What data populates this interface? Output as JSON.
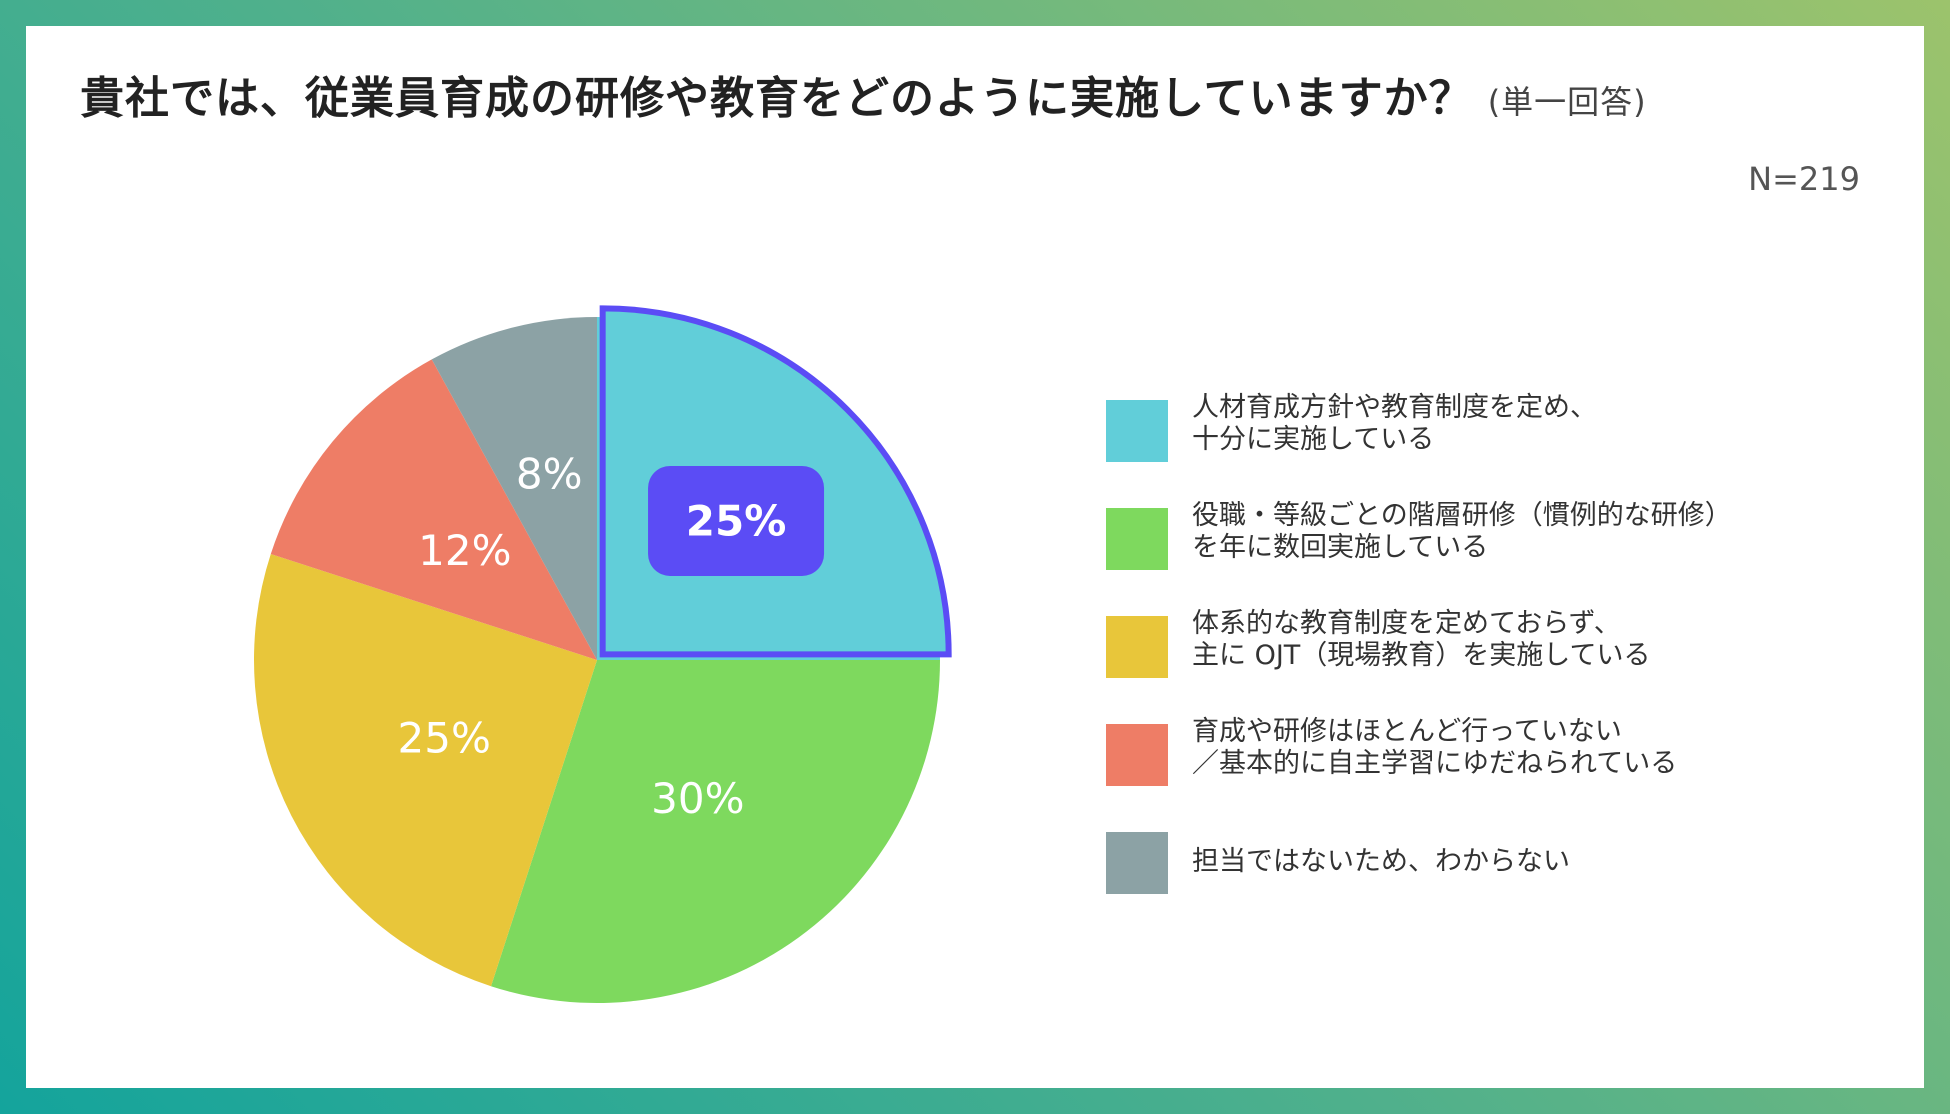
{
  "header": {
    "title": "貴社では、従業員育成の研修や教育をどのように実施していますか？",
    "title_note": "(単一回答)",
    "n_label": "N=219"
  },
  "chart_data": {
    "type": "pie",
    "title": "貴社では、従業員育成の研修や教育をどのように実施していますか？",
    "note": "(単一回答)",
    "n": "N=219",
    "legend_placement": "right",
    "highlighted_slice": 0,
    "highlight_color": "#5b4cf5",
    "slices": [
      {
        "label": "人材育成方針や教育制度を定め、\n十分に実施している",
        "value": 25,
        "value_label": "25%",
        "color": "#61ced9"
      },
      {
        "label": "役職・等級ごとの階層研修（慣例的な研修）\nを年に数回実施している",
        "value": 30,
        "value_label": "30%",
        "color": "#7ed95e"
      },
      {
        "label": "体系的な教育制度を定めておらず、\n主に OJT（現場教育）を実施している",
        "value": 25,
        "value_label": "25%",
        "color": "#e8c63a"
      },
      {
        "label": "育成や研修はほとんど行っていない\n／基本的に自主学習にゆだねられている",
        "value": 12,
        "value_label": "12%",
        "color": "#ee7d66"
      },
      {
        "label": "担当ではないため、わからない",
        "value": 8,
        "value_label": "8%",
        "color": "#8ca2a5"
      }
    ]
  }
}
